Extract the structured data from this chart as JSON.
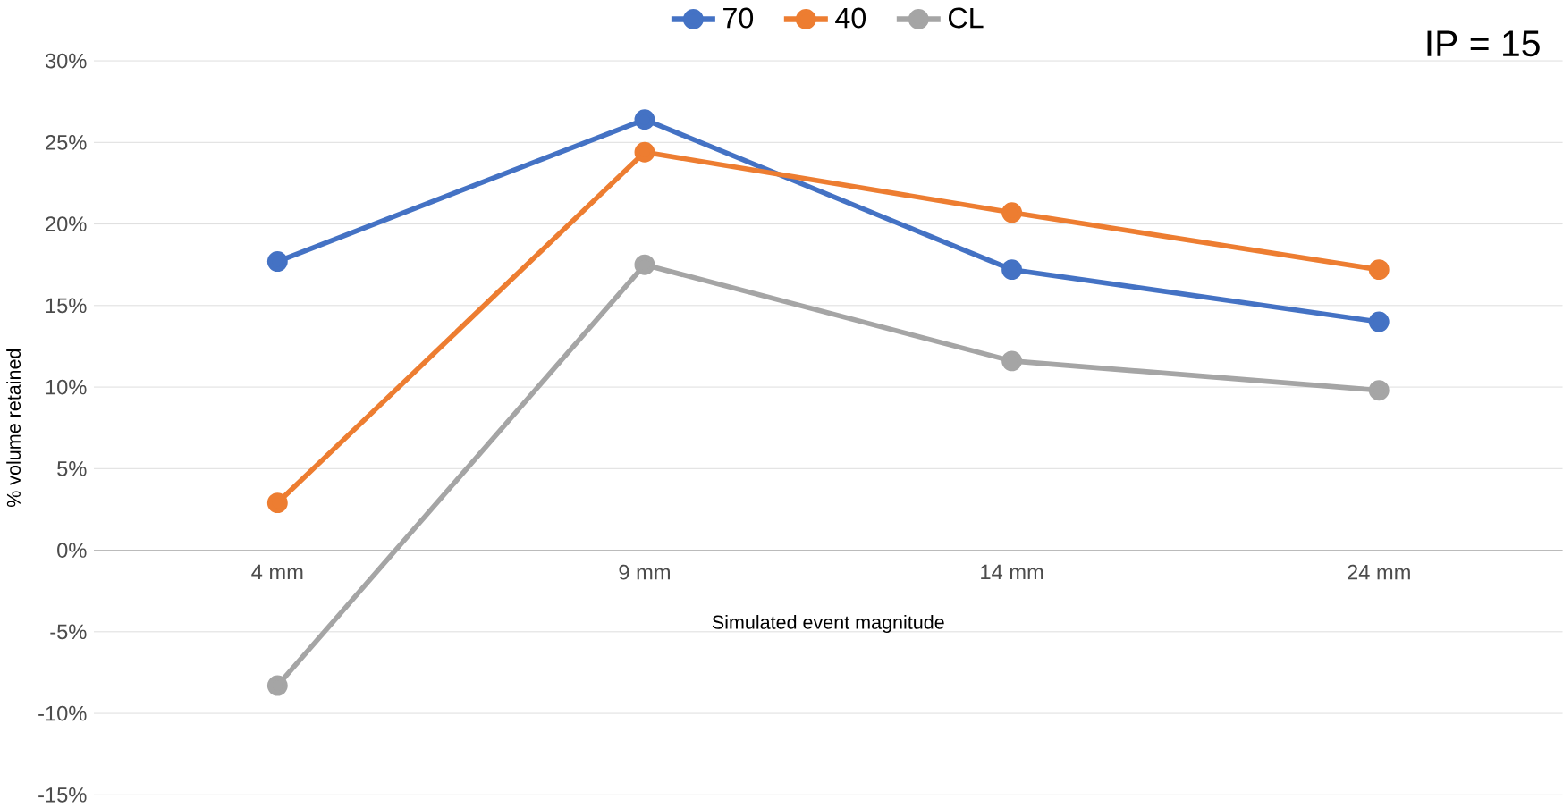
{
  "chart_data": {
    "type": "line",
    "xlabel": "Simulated event magnitude",
    "ylabel": "% volume retained",
    "categories": [
      "4 mm",
      "9 mm",
      "14 mm",
      "24 mm"
    ],
    "series": [
      {
        "name": "70",
        "color": "#4472c4",
        "values": [
          17.7,
          26.4,
          17.2,
          14.0
        ]
      },
      {
        "name": "40",
        "color": "#ed7d31",
        "values": [
          2.9,
          24.4,
          20.7,
          17.2
        ]
      },
      {
        "name": "CL",
        "color": "#a5a5a5",
        "values": [
          -8.3,
          17.5,
          11.6,
          9.8
        ]
      }
    ],
    "ylim": [
      -15,
      30
    ],
    "yticks": [
      {
        "value": -15,
        "label": "-15%"
      },
      {
        "value": -10,
        "label": "-10%"
      },
      {
        "value": -5,
        "label": "-5%"
      },
      {
        "value": 0,
        "label": "0%"
      },
      {
        "value": 5,
        "label": "5%"
      },
      {
        "value": 10,
        "label": "10%"
      },
      {
        "value": 15,
        "label": "15%"
      },
      {
        "value": 20,
        "label": "20%"
      },
      {
        "value": 25,
        "label": "25%"
      },
      {
        "value": 30,
        "label": "30%"
      }
    ],
    "grid": "y",
    "legend": "top",
    "marker": "circle",
    "line_style": "solid",
    "annotations": [
      "IP = 15"
    ]
  }
}
